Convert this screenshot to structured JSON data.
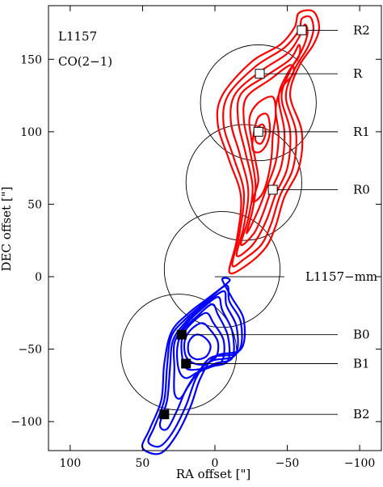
{
  "chart_data": {
    "type": "contour",
    "title": "",
    "annotations_top_left": [
      "L1157",
      "CO(2−1)"
    ],
    "xlabel": "RA offset [\"]",
    "ylabel": "DEC offset [\"]",
    "xlim": [
      115,
      -115
    ],
    "ylim": [
      -120,
      187
    ],
    "xticks": [
      100,
      50,
      0,
      -50,
      -100
    ],
    "xtick_labels": [
      "100",
      "50",
      "0",
      "−50",
      "−100"
    ],
    "yticks": [
      -100,
      -50,
      0,
      50,
      100,
      150
    ],
    "ytick_labels": [
      "−100",
      "−50",
      "0",
      "50",
      "100",
      "150"
    ],
    "grid": false,
    "contour_colors": {
      "red_lobe": "#ff0000",
      "blue_lobe": "#0000ff"
    },
    "circles": [
      {
        "center": [
          -30,
          120
        ],
        "radius": 40
      },
      {
        "center": [
          -20,
          65
        ],
        "radius": 40
      },
      {
        "center": [
          -5,
          5
        ],
        "radius": 40
      },
      {
        "center": [
          25,
          -52
        ],
        "radius": 40
      }
    ],
    "positions": [
      {
        "name": "R2",
        "x": -60,
        "y": 170,
        "marker": "open-square",
        "label_y": 170
      },
      {
        "name": "R",
        "x": -31,
        "y": 140,
        "marker": "open-square",
        "label_y": 140
      },
      {
        "name": "R1",
        "x": -30,
        "y": 100,
        "marker": "open-square",
        "label_y": 100
      },
      {
        "name": "R0",
        "x": -40,
        "y": 60,
        "marker": "open-square",
        "label_y": 60
      },
      {
        "name": "L1157−mm",
        "x": 0,
        "y": 0,
        "marker": "none",
        "label_y": 0
      },
      {
        "name": "B0",
        "x": 23,
        "y": -40,
        "marker": "filled-square",
        "label_y": -40
      },
      {
        "name": "B1",
        "x": 20,
        "y": -60,
        "marker": "filled-square",
        "label_y": -60
      },
      {
        "name": "B2",
        "x": 35,
        "y": -95,
        "marker": "filled-square",
        "label_y": -95
      }
    ],
    "red_lobe_contours": [
      [
        [
          -10,
          3
        ],
        [
          -15,
          25
        ],
        [
          -18,
          55
        ],
        [
          -10,
          80
        ],
        [
          -2,
          105
        ],
        [
          -5,
          125
        ],
        [
          -25,
          148
        ],
        [
          -45,
          160
        ],
        [
          -55,
          172
        ],
        [
          -58,
          182
        ],
        [
          -68,
          183
        ],
        [
          -72,
          172
        ],
        [
          -68,
          160
        ],
        [
          -58,
          145
        ],
        [
          -52,
          125
        ],
        [
          -60,
          100
        ],
        [
          -58,
          75
        ],
        [
          -48,
          55
        ],
        [
          -42,
          35
        ],
        [
          -35,
          20
        ],
        [
          -22,
          8
        ]
      ],
      [
        [
          -12,
          8
        ],
        [
          -17,
          30
        ],
        [
          -20,
          58
        ],
        [
          -13,
          82
        ],
        [
          -6,
          105
        ],
        [
          -9,
          125
        ],
        [
          -28,
          145
        ],
        [
          -48,
          158
        ],
        [
          -58,
          170
        ],
        [
          -60,
          178
        ],
        [
          -66,
          179
        ],
        [
          -68,
          170
        ],
        [
          -64,
          158
        ],
        [
          -55,
          143
        ],
        [
          -49,
          124
        ],
        [
          -56,
          100
        ],
        [
          -54,
          75
        ],
        [
          -45,
          56
        ],
        [
          -39,
          37
        ],
        [
          -32,
          22
        ],
        [
          -20,
          12
        ]
      ],
      [
        [
          -15,
          15
        ],
        [
          -20,
          35
        ],
        [
          -23,
          60
        ],
        [
          -17,
          85
        ],
        [
          -11,
          107
        ],
        [
          -14,
          126
        ],
        [
          -32,
          142
        ],
        [
          -50,
          154
        ],
        [
          -58,
          165
        ],
        [
          -62,
          174
        ],
        [
          -64,
          168
        ],
        [
          -60,
          156
        ],
        [
          -52,
          142
        ],
        [
          -46,
          124
        ],
        [
          -52,
          100
        ],
        [
          -50,
          75
        ],
        [
          -42,
          57
        ],
        [
          -36,
          40
        ],
        [
          -29,
          26
        ],
        [
          -22,
          18
        ]
      ],
      [
        [
          -18,
          22
        ],
        [
          -23,
          40
        ],
        [
          -26,
          62
        ],
        [
          -21,
          86
        ],
        [
          -16,
          108
        ],
        [
          -18,
          126
        ],
        [
          -36,
          139
        ],
        [
          -52,
          150
        ],
        [
          -58,
          160
        ],
        [
          -58,
          152
        ],
        [
          -50,
          140
        ],
        [
          -44,
          124
        ],
        [
          -48,
          100
        ],
        [
          -46,
          77
        ],
        [
          -39,
          60
        ],
        [
          -33,
          43
        ],
        [
          -27,
          30
        ]
      ],
      [
        [
          -22,
          30
        ],
        [
          -26,
          46
        ],
        [
          -28,
          64
        ],
        [
          -24,
          88
        ],
        [
          -20,
          108
        ],
        [
          -22,
          124
        ],
        [
          -38,
          136
        ],
        [
          -52,
          146
        ],
        [
          -54,
          140
        ],
        [
          -46,
          130
        ],
        [
          -42,
          116
        ],
        [
          -44,
          98
        ],
        [
          -42,
          79
        ],
        [
          -36,
          62
        ],
        [
          -30,
          46
        ]
      ],
      [
        [
          -26,
          52
        ],
        [
          -30,
          66
        ],
        [
          -28,
          80
        ],
        [
          -25,
          96
        ],
        [
          -24,
          110
        ],
        [
          -30,
          120
        ],
        [
          -40,
          124
        ],
        [
          -42,
          112
        ],
        [
          -40,
          98
        ],
        [
          -39,
          82
        ],
        [
          -36,
          66
        ],
        [
          -32,
          56
        ]
      ],
      [
        [
          -26,
          88
        ],
        [
          -27,
          100
        ],
        [
          -30,
          110
        ],
        [
          -36,
          112
        ],
        [
          -38,
          102
        ],
        [
          -36,
          92
        ],
        [
          -31,
          86
        ]
      ],
      [
        [
          -28,
          94
        ],
        [
          -29,
          102
        ],
        [
          -33,
          105
        ],
        [
          -35,
          99
        ],
        [
          -32,
          92
        ]
      ]
    ],
    "blue_lobe_contours": [
      [
        [
          -10,
          -3
        ],
        [
          5,
          -15
        ],
        [
          18,
          -25
        ],
        [
          30,
          -38
        ],
        [
          35,
          -60
        ],
        [
          37,
          -85
        ],
        [
          45,
          -105
        ],
        [
          50,
          -118
        ],
        [
          38,
          -122
        ],
        [
          27,
          -110
        ],
        [
          17,
          -90
        ],
        [
          10,
          -70
        ],
        [
          0,
          -55
        ],
        [
          -18,
          -50
        ],
        [
          -20,
          -30
        ],
        [
          -12,
          -15
        ],
        [
          -5,
          -2
        ]
      ],
      [
        [
          -8,
          -6
        ],
        [
          6,
          -17
        ],
        [
          19,
          -28
        ],
        [
          30,
          -41
        ],
        [
          33,
          -61
        ],
        [
          35,
          -85
        ],
        [
          42,
          -104
        ],
        [
          46,
          -114
        ],
        [
          38,
          -117
        ],
        [
          29,
          -107
        ],
        [
          20,
          -89
        ],
        [
          13,
          -70
        ],
        [
          3,
          -56
        ],
        [
          -16,
          -52
        ],
        [
          -18,
          -32
        ],
        [
          -10,
          -17
        ]
      ],
      [
        [
          -6,
          -10
        ],
        [
          8,
          -20
        ],
        [
          20,
          -31
        ],
        [
          29,
          -44
        ],
        [
          31,
          -62
        ],
        [
          33,
          -85
        ],
        [
          38,
          -102
        ],
        [
          33,
          -105
        ],
        [
          26,
          -92
        ],
        [
          20,
          -78
        ],
        [
          12,
          -66
        ],
        [
          2,
          -58
        ],
        [
          -14,
          -54
        ],
        [
          -15,
          -35
        ],
        [
          -8,
          -20
        ]
      ],
      [
        [
          -2,
          -14
        ],
        [
          10,
          -23
        ],
        [
          21,
          -34
        ],
        [
          28,
          -46
        ],
        [
          28,
          -63
        ],
        [
          28,
          -80
        ],
        [
          24,
          -84
        ],
        [
          18,
          -75
        ],
        [
          11,
          -66
        ],
        [
          0,
          -60
        ],
        [
          -12,
          -56
        ],
        [
          -12,
          -38
        ],
        [
          -5,
          -23
        ]
      ],
      [
        [
          2,
          -19
        ],
        [
          12,
          -27
        ],
        [
          22,
          -37
        ],
        [
          26,
          -49
        ],
        [
          25,
          -64
        ],
        [
          20,
          -70
        ],
        [
          12,
          -66
        ],
        [
          2,
          -62
        ],
        [
          -9,
          -58
        ],
        [
          -9,
          -41
        ],
        [
          -2,
          -26
        ]
      ],
      [
        [
          6,
          -25
        ],
        [
          15,
          -31
        ],
        [
          22,
          -40
        ],
        [
          23,
          -52
        ],
        [
          20,
          -63
        ],
        [
          12,
          -64
        ],
        [
          4,
          -62
        ],
        [
          -5,
          -58
        ],
        [
          -6,
          -44
        ],
        [
          1,
          -32
        ]
      ],
      [
        [
          9,
          -32
        ],
        [
          17,
          -37
        ],
        [
          21,
          -45
        ],
        [
          20,
          -55
        ],
        [
          14,
          -60
        ],
        [
          6,
          -60
        ],
        [
          -1,
          -55
        ],
        [
          -2,
          -45
        ],
        [
          3,
          -37
        ]
      ],
      [
        [
          13,
          -40
        ],
        [
          18,
          -45
        ],
        [
          18,
          -53
        ],
        [
          13,
          -57
        ],
        [
          6,
          -55
        ],
        [
          3,
          -48
        ],
        [
          7,
          -42
        ]
      ]
    ]
  }
}
